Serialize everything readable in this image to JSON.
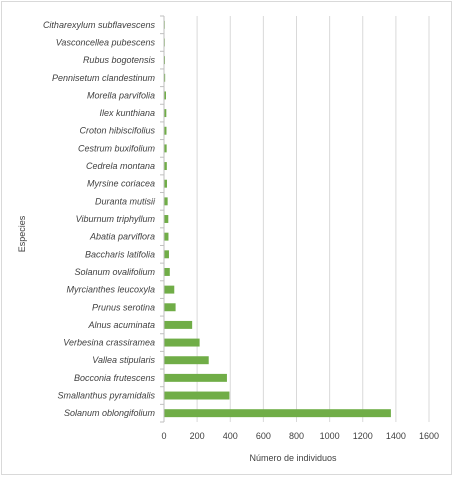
{
  "chart_data": {
    "type": "bar",
    "orientation": "horizontal",
    "title": "",
    "xlabel": "Número de individuos",
    "ylabel": "Especies",
    "xlim": [
      0,
      1600
    ],
    "xticks": [
      0,
      200,
      400,
      600,
      800,
      1000,
      1200,
      1400,
      1600
    ],
    "grid": true,
    "bar_color": "#70AD47",
    "categories": [
      "Citharexylum subflavescens",
      "Vasconcellea pubescens",
      "Rubus bogotensis",
      "Pennisetum clandestinum",
      "Morella parvifolia",
      "Ilex kunthiana",
      "Croton hibiscifolius",
      "Cestrum buxifolium",
      "Cedrela montana",
      "Myrsine coriacea",
      "Duranta mutisii",
      "Viburnum triphyllum",
      "Abatia parviflora",
      "Baccharis latifolia",
      "Solanum ovalifolium",
      "Myrcianthes leucoxyla",
      "Prunus serotina",
      "Alnus acuminata",
      "Verbesina crassiramea",
      "Vallea stipularis",
      "Bocconia frutescens",
      "Smallanthus pyramidalis",
      "Solanum oblongifolium"
    ],
    "values": [
      4,
      5,
      6,
      7,
      12,
      14,
      15,
      16,
      17,
      18,
      22,
      26,
      27,
      30,
      35,
      62,
      70,
      170,
      215,
      270,
      380,
      395,
      1370
    ]
  }
}
